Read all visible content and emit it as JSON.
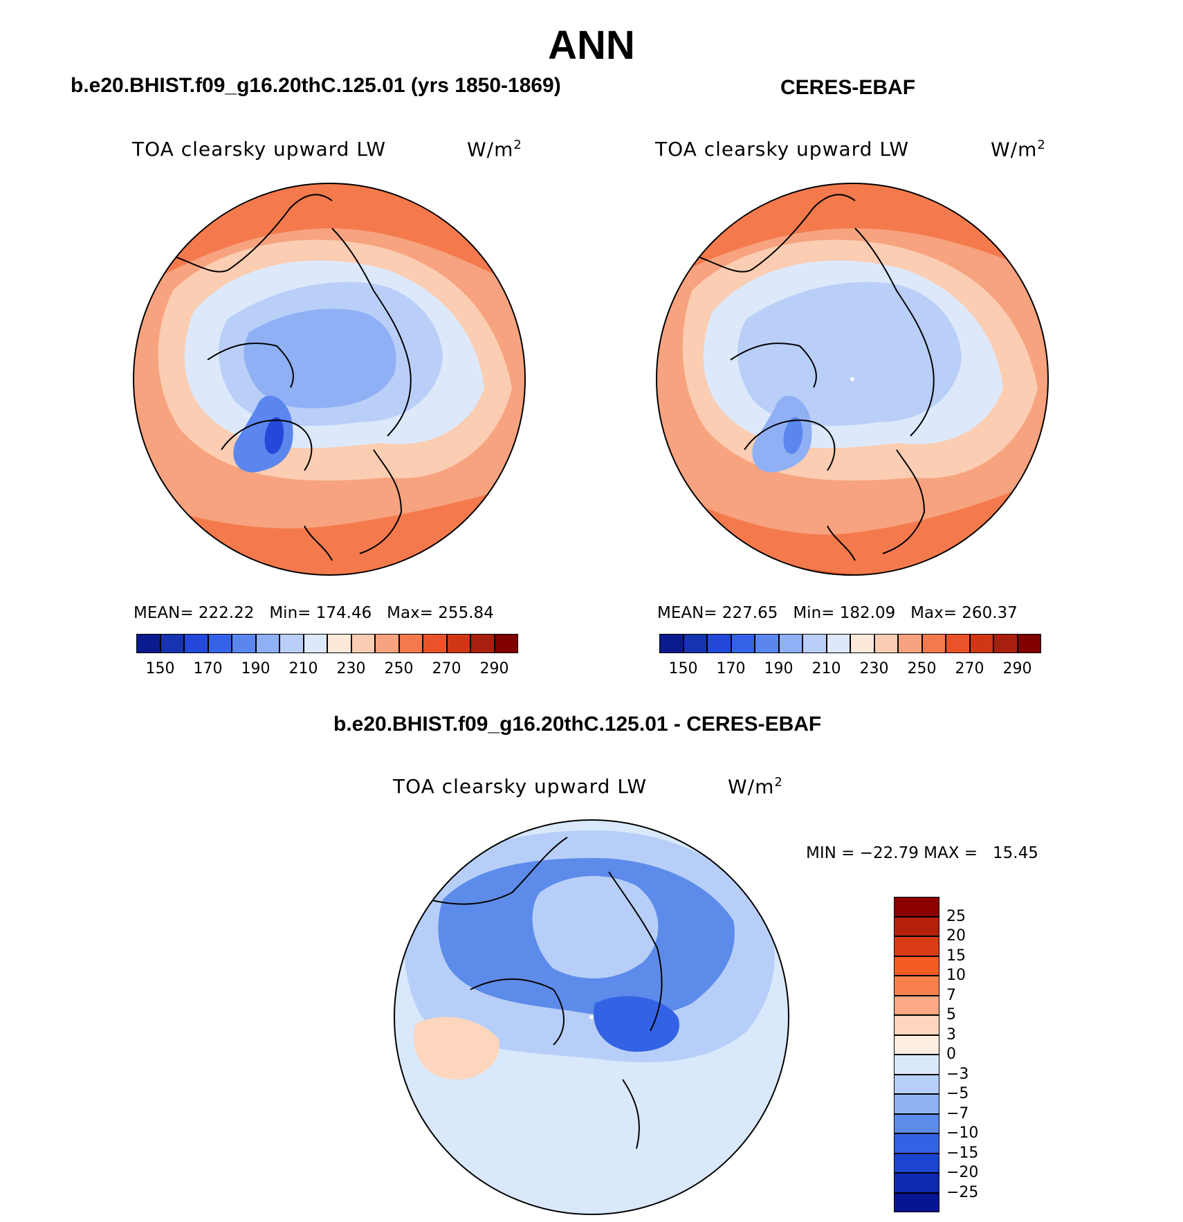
{
  "title": "ANN",
  "panels": [
    {
      "case_title": "b.e20.BHIST.f09_g16.20thC.125.01 (yrs 1850-1869)",
      "variable": "TOA clearsky upward LW",
      "units": "W/m",
      "units_exp": "2",
      "stats": {
        "mean_label": "MEAN=",
        "mean": "222.22",
        "min_label": "Min=",
        "min": "174.46",
        "max_label": "Max=",
        "max": "255.84"
      }
    },
    {
      "case_title": "CERES-EBAF",
      "variable": "TOA clearsky upward LW",
      "units": "W/m",
      "units_exp": "2",
      "stats": {
        "mean_label": "MEAN=",
        "mean": "227.65",
        "min_label": "Min=",
        "min": "182.09",
        "max_label": "Max=",
        "max": "260.37"
      }
    }
  ],
  "colorbar_horizontal": {
    "ticks": [
      "150",
      "170",
      "190",
      "210",
      "230",
      "250",
      "270",
      "290"
    ],
    "colors": [
      "#0b1a8c",
      "#1633b0",
      "#2448d8",
      "#3563e8",
      "#5a86ee",
      "#8fb0f4",
      "#b9cff8",
      "#dde9fb",
      "#fde9da",
      "#fbcdb2",
      "#f7a37f",
      "#f47a4d",
      "#e8532a",
      "#cf3716",
      "#a91f0e",
      "#800000"
    ]
  },
  "diff_panel": {
    "case_title": "b.e20.BHIST.f09_g16.20thC.125.01 - CERES-EBAF",
    "variable": "TOA clearsky upward LW",
    "units": "W/m",
    "units_exp": "2",
    "minmax_text": "MIN = −22.79 MAX =   15.45",
    "colorbar": {
      "ticks": [
        "25",
        "20",
        "15",
        "10",
        "7",
        "5",
        "3",
        "0",
        "−3",
        "−5",
        "−7",
        "−10",
        "−15",
        "−20",
        "−25"
      ],
      "colors": [
        "#8c0000",
        "#b5200c",
        "#d83b16",
        "#f45c25",
        "#f8804d",
        "#fba884",
        "#fdd6bd",
        "#fdeee1",
        "#d9e8fb",
        "#b7cff8",
        "#8fb2f3",
        "#5d8bea",
        "#3363e4",
        "#1b45d0",
        "#0f2ab0",
        "#071690"
      ]
    }
  },
  "colors": {
    "ocean_warm": "#f6a27e",
    "land_cold": "#b9cff8",
    "background": "#ffffff"
  }
}
